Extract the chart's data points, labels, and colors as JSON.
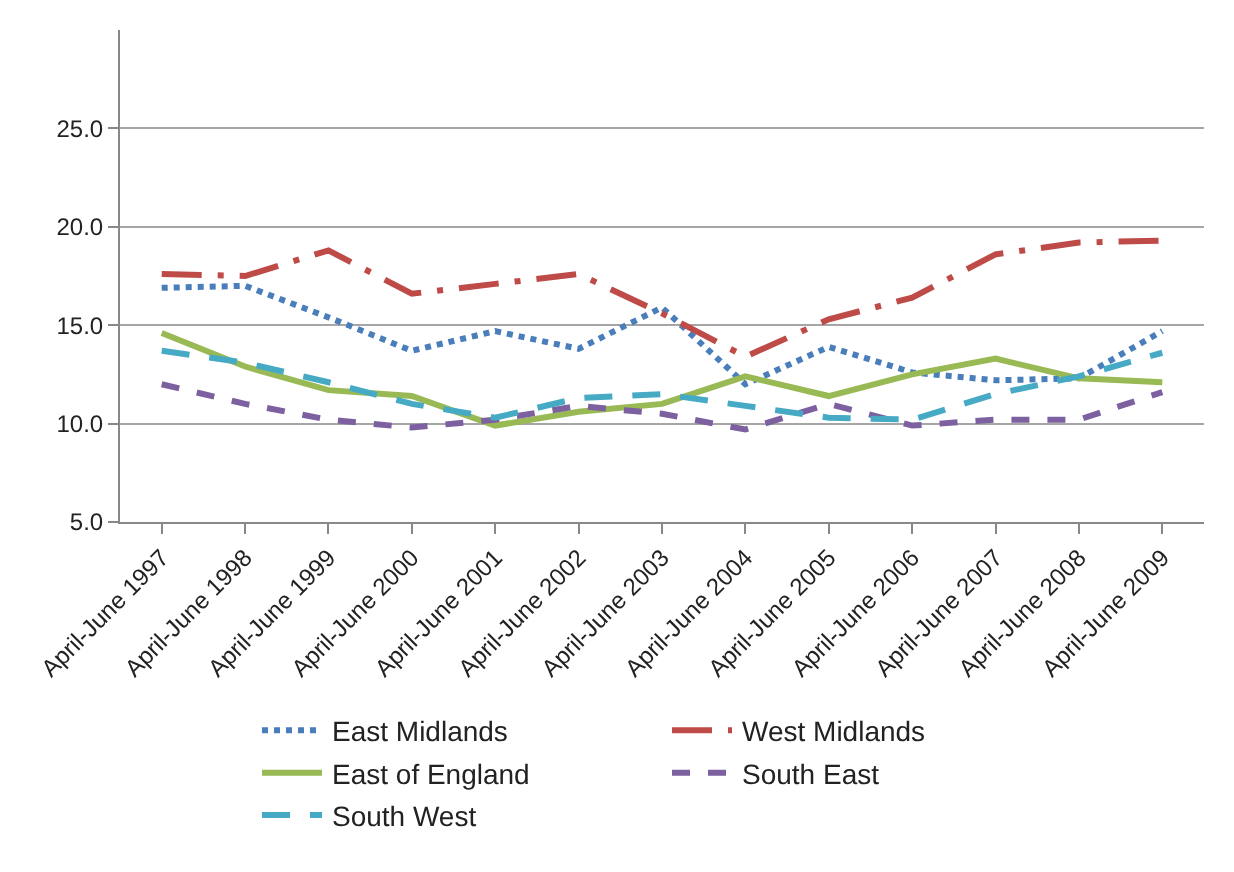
{
  "chart_data": {
    "type": "line",
    "categories": [
      "April-June 1997",
      "April-June 1998",
      "April-June 1999",
      "April-June 2000",
      "April-June 2001",
      "April-June 2002",
      "April-June 2003",
      "April-June 2004",
      "April-June 2005",
      "April-June 2006",
      "April-June 2007",
      "April-June 2008",
      "April-June 2009"
    ],
    "series": [
      {
        "name": "East Midlands",
        "color": "#4a7ebb",
        "line_style": "dotted",
        "values": [
          16.9,
          17.0,
          15.4,
          13.7,
          14.7,
          13.8,
          15.9,
          12.0,
          13.9,
          12.6,
          12.2,
          12.3,
          14.7
        ]
      },
      {
        "name": "West Midlands",
        "color": "#be4b48",
        "line_style": "dashed",
        "values": [
          17.6,
          17.5,
          18.8,
          16.6,
          17.1,
          17.6,
          15.6,
          13.4,
          15.3,
          16.4,
          18.6,
          19.2,
          19.3
        ]
      },
      {
        "name": "East of England",
        "color": "#98b954",
        "line_style": "solid",
        "values": [
          14.6,
          12.9,
          11.7,
          11.4,
          9.9,
          10.6,
          11.0,
          12.4,
          11.4,
          12.5,
          13.3,
          12.3,
          12.1
        ]
      },
      {
        "name": "South East",
        "color": "#7d60a0",
        "line_style": "dashed",
        "values": [
          12.0,
          11.0,
          10.2,
          9.8,
          10.2,
          10.9,
          10.5,
          9.7,
          11.0,
          9.9,
          10.2,
          10.2,
          11.6
        ]
      },
      {
        "name": "South West",
        "color": "#46aac5",
        "line_style": "dashed",
        "values": [
          13.7,
          13.1,
          12.1,
          11.0,
          10.3,
          11.3,
          11.5,
          10.9,
          10.3,
          10.2,
          11.5,
          12.4,
          13.6
        ]
      }
    ],
    "ylim": [
      5,
      30
    ],
    "yticks": [
      {
        "value": 5,
        "label": "5.0"
      },
      {
        "value": 10,
        "label": "10.0"
      },
      {
        "value": 15,
        "label": "15.0"
      },
      {
        "value": 20,
        "label": "20.0"
      },
      {
        "value": 25,
        "label": "25.0"
      }
    ],
    "grid": "y",
    "legend": "bottom",
    "marker": "none"
  }
}
